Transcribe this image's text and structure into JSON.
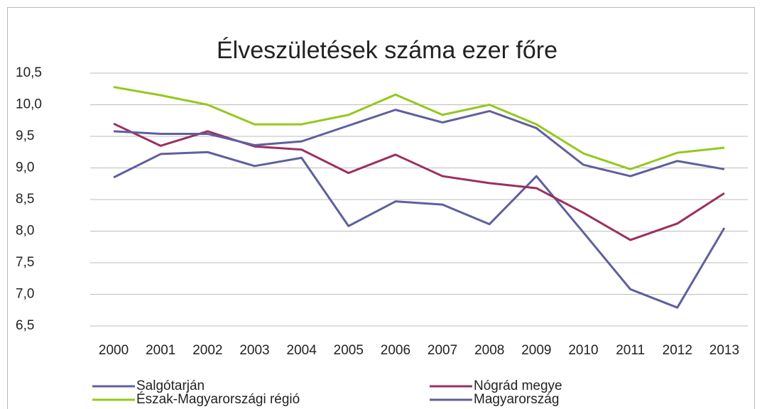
{
  "chart_data": {
    "type": "line",
    "title": "Élveszületések száma ezer főre",
    "categories": [
      "2000",
      "2001",
      "2002",
      "2003",
      "2004",
      "2005",
      "2006",
      "2007",
      "2008",
      "2009",
      "2010",
      "2011",
      "2012",
      "2013"
    ],
    "series": [
      {
        "name": "Salgótarján",
        "color": "#5f5f9e",
        "values": [
          8.85,
          9.22,
          9.25,
          9.03,
          9.16,
          8.08,
          8.47,
          8.42,
          8.11,
          8.87,
          7.98,
          7.08,
          6.79,
          8.05
        ]
      },
      {
        "name": "Nógrád megye",
        "color": "#9c2f5f",
        "values": [
          9.7,
          9.35,
          9.58,
          9.34,
          9.29,
          8.92,
          9.21,
          8.87,
          8.76,
          8.68,
          8.29,
          7.86,
          8.12,
          8.6
        ]
      },
      {
        "name": "Észak-Magyarországi régió",
        "color": "#94c81c",
        "values": [
          10.28,
          10.15,
          10.0,
          9.69,
          9.69,
          9.84,
          10.16,
          9.84,
          10.0,
          9.69,
          9.23,
          8.98,
          9.24,
          9.32
        ]
      },
      {
        "name": "Magyarország",
        "color": "#5f5f9e",
        "values": [
          9.58,
          9.54,
          9.54,
          9.36,
          9.42,
          9.67,
          9.92,
          9.72,
          9.9,
          9.63,
          9.05,
          8.87,
          9.11,
          8.98
        ]
      }
    ],
    "ylim": [
      6.5,
      10.5
    ],
    "yticks": [
      {
        "value": 6.5,
        "label": "6,5"
      },
      {
        "value": 7,
        "label": "7,0"
      },
      {
        "value": 7.5,
        "label": "7,5"
      },
      {
        "value": 8,
        "label": "8,0"
      },
      {
        "value": 8.5,
        "label": "8,5"
      },
      {
        "value": 9,
        "label": "9,0"
      },
      {
        "value": 9.5,
        "label": "9,5"
      },
      {
        "value": 10,
        "label": "10,0"
      },
      {
        "value": 10.5,
        "label": "10,5"
      }
    ],
    "grid": true,
    "legend": "bottom"
  }
}
